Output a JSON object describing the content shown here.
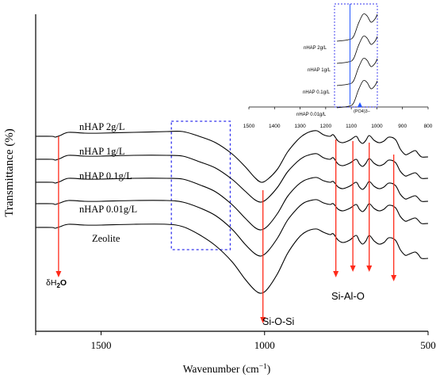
{
  "chart_data": {
    "type": "line",
    "xlabel": "Wavenumber (cm",
    "xlabel_sup": "−1",
    "xlabel_close": ")",
    "ylabel": "Transmittance (%)",
    "xlim": [
      1700,
      500
    ],
    "x_reversed": true,
    "x_ticks": [
      1500,
      1000,
      500
    ],
    "x_tick_labels": [
      "1500",
      "1000",
      "500"
    ],
    "series": [
      {
        "name": "nHAP 2g/L",
        "points": [
          [
            1700,
            172
          ],
          [
            1650,
            172
          ],
          [
            1640,
            173
          ],
          [
            1625,
            171
          ],
          [
            1600,
            167
          ],
          [
            1550,
            168
          ],
          [
            1500,
            168
          ],
          [
            1400,
            167
          ],
          [
            1300,
            166
          ],
          [
            1250,
            166
          ],
          [
            1200,
            172
          ],
          [
            1150,
            180
          ],
          [
            1100,
            194
          ],
          [
            1060,
            210
          ],
          [
            1030,
            224
          ],
          [
            1010,
            230
          ],
          [
            990,
            226
          ],
          [
            960,
            213
          ],
          [
            930,
            192
          ],
          [
            900,
            177
          ],
          [
            880,
            170
          ],
          [
            860,
            166
          ],
          [
            840,
            165
          ],
          [
            820,
            170
          ],
          [
            800,
            172
          ],
          [
            790,
            170
          ],
          [
            775,
            178
          ],
          [
            760,
            180
          ],
          [
            740,
            177
          ],
          [
            720,
            172
          ],
          [
            710,
            178
          ],
          [
            700,
            181
          ],
          [
            690,
            177
          ],
          [
            680,
            171
          ],
          [
            665,
            177
          ],
          [
            650,
            180
          ],
          [
            635,
            178
          ],
          [
            620,
            173
          ],
          [
            600,
            176
          ],
          [
            585,
            188
          ],
          [
            570,
            195
          ],
          [
            560,
            194
          ],
          [
            540,
            190
          ],
          [
            530,
            194
          ],
          [
            520,
            198
          ],
          [
            500,
            198
          ]
        ]
      },
      {
        "name": "nHAP 1g/L",
        "points": [
          [
            1700,
            201
          ],
          [
            1650,
            201
          ],
          [
            1640,
            202
          ],
          [
            1625,
            200
          ],
          [
            1600,
            196
          ],
          [
            1550,
            197
          ],
          [
            1500,
            197
          ],
          [
            1400,
            196
          ],
          [
            1300,
            196
          ],
          [
            1250,
            197
          ],
          [
            1200,
            204
          ],
          [
            1150,
            212
          ],
          [
            1100,
            226
          ],
          [
            1060,
            241
          ],
          [
            1030,
            252
          ],
          [
            1010,
            255
          ],
          [
            990,
            250
          ],
          [
            960,
            236
          ],
          [
            930,
            217
          ],
          [
            900,
            204
          ],
          [
            880,
            198
          ],
          [
            860,
            195
          ],
          [
            840,
            194
          ],
          [
            820,
            199
          ],
          [
            800,
            201
          ],
          [
            790,
            199
          ],
          [
            775,
            207
          ],
          [
            760,
            209
          ],
          [
            740,
            206
          ],
          [
            720,
            201
          ],
          [
            710,
            207
          ],
          [
            700,
            210
          ],
          [
            690,
            206
          ],
          [
            680,
            200
          ],
          [
            665,
            206
          ],
          [
            650,
            209
          ],
          [
            635,
            207
          ],
          [
            620,
            202
          ],
          [
            600,
            205
          ],
          [
            585,
            216
          ],
          [
            570,
            222
          ],
          [
            560,
            221
          ],
          [
            540,
            218
          ],
          [
            530,
            221
          ],
          [
            520,
            225
          ],
          [
            500,
            225
          ]
        ]
      },
      {
        "name": "nHAP 0.1g/L",
        "points": [
          [
            1700,
            230
          ],
          [
            1650,
            230
          ],
          [
            1640,
            231
          ],
          [
            1625,
            229
          ],
          [
            1600,
            225
          ],
          [
            1550,
            226
          ],
          [
            1500,
            226
          ],
          [
            1400,
            225
          ],
          [
            1300,
            225
          ],
          [
            1250,
            226
          ],
          [
            1200,
            233
          ],
          [
            1150,
            242
          ],
          [
            1100,
            258
          ],
          [
            1060,
            275
          ],
          [
            1030,
            287
          ],
          [
            1010,
            290
          ],
          [
            990,
            285
          ],
          [
            960,
            269
          ],
          [
            930,
            248
          ],
          [
            900,
            234
          ],
          [
            880,
            228
          ],
          [
            860,
            225
          ],
          [
            840,
            224
          ],
          [
            820,
            228
          ],
          [
            800,
            230
          ],
          [
            790,
            229
          ],
          [
            775,
            236
          ],
          [
            760,
            238
          ],
          [
            740,
            235
          ],
          [
            720,
            230
          ],
          [
            710,
            236
          ],
          [
            700,
            239
          ],
          [
            690,
            235
          ],
          [
            680,
            229
          ],
          [
            665,
            235
          ],
          [
            650,
            238
          ],
          [
            635,
            236
          ],
          [
            620,
            231
          ],
          [
            600,
            234
          ],
          [
            585,
            245
          ],
          [
            570,
            251
          ],
          [
            560,
            250
          ],
          [
            540,
            247
          ],
          [
            530,
            250
          ],
          [
            520,
            254
          ],
          [
            500,
            254
          ]
        ]
      },
      {
        "name": "nHAP 0.01g/L",
        "points": [
          [
            1700,
            257
          ],
          [
            1650,
            257
          ],
          [
            1640,
            258
          ],
          [
            1625,
            256
          ],
          [
            1600,
            253
          ],
          [
            1550,
            254
          ],
          [
            1500,
            254
          ],
          [
            1400,
            253
          ],
          [
            1300,
            253
          ],
          [
            1250,
            255
          ],
          [
            1200,
            262
          ],
          [
            1150,
            272
          ],
          [
            1100,
            289
          ],
          [
            1060,
            308
          ],
          [
            1030,
            320
          ],
          [
            1010,
            323
          ],
          [
            990,
            317
          ],
          [
            960,
            300
          ],
          [
            930,
            278
          ],
          [
            900,
            263
          ],
          [
            880,
            256
          ],
          [
            860,
            253
          ],
          [
            840,
            252
          ],
          [
            820,
            256
          ],
          [
            800,
            258
          ],
          [
            790,
            257
          ],
          [
            775,
            264
          ],
          [
            760,
            266
          ],
          [
            740,
            263
          ],
          [
            720,
            258
          ],
          [
            710,
            264
          ],
          [
            700,
            267
          ],
          [
            690,
            263
          ],
          [
            680,
            257
          ],
          [
            665,
            263
          ],
          [
            650,
            266
          ],
          [
            635,
            264
          ],
          [
            620,
            259
          ],
          [
            600,
            262
          ],
          [
            585,
            273
          ],
          [
            570,
            279
          ],
          [
            560,
            278
          ],
          [
            540,
            275
          ],
          [
            530,
            278
          ],
          [
            520,
            282
          ],
          [
            500,
            282
          ]
        ]
      },
      {
        "name": "Zeolite",
        "points": [
          [
            1700,
            287
          ],
          [
            1650,
            287
          ],
          [
            1640,
            288
          ],
          [
            1625,
            286
          ],
          [
            1600,
            283
          ],
          [
            1550,
            284
          ],
          [
            1500,
            284
          ],
          [
            1400,
            283
          ],
          [
            1300,
            283
          ],
          [
            1250,
            286
          ],
          [
            1200,
            296
          ],
          [
            1150,
            310
          ],
          [
            1100,
            330
          ],
          [
            1060,
            352
          ],
          [
            1030,
            366
          ],
          [
            1010,
            370
          ],
          [
            990,
            364
          ],
          [
            960,
            345
          ],
          [
            930,
            320
          ],
          [
            900,
            302
          ],
          [
            880,
            294
          ],
          [
            860,
            290
          ],
          [
            840,
            289
          ],
          [
            820,
            293
          ],
          [
            800,
            296
          ],
          [
            790,
            295
          ],
          [
            775,
            303
          ],
          [
            760,
            306
          ],
          [
            740,
            303
          ],
          [
            720,
            297
          ],
          [
            710,
            304
          ],
          [
            700,
            308
          ],
          [
            690,
            304
          ],
          [
            680,
            297
          ],
          [
            665,
            304
          ],
          [
            650,
            308
          ],
          [
            635,
            306
          ],
          [
            620,
            300
          ],
          [
            600,
            303
          ],
          [
            585,
            315
          ],
          [
            570,
            322
          ],
          [
            560,
            321
          ],
          [
            540,
            318
          ],
          [
            530,
            321
          ],
          [
            520,
            326
          ],
          [
            500,
            326
          ]
        ]
      }
    ],
    "curve_labels": [
      "nHAP 2g/L",
      "nHAP 1g/L",
      "nHAP 0.1g/L",
      "nHAP 0.01g/L",
      "Zeolite"
    ],
    "annotations": {
      "water": "δH",
      "water_sub": "2",
      "water_end": "O",
      "si_o_si": "Si-O-Si",
      "si_al_o": "Si-Al-O"
    },
    "marker_positions_cm1": {
      "water": 1630,
      "si_o_si": 1005,
      "si_al_o": [
        782,
        730,
        680,
        605
      ]
    },
    "highlight_box_cm1": [
      1285,
      1105
    ],
    "inset": {
      "x_ticks": [
        1500,
        1400,
        1300,
        1200,
        1100,
        1000,
        900,
        800
      ],
      "x_tick_labels": [
        "1500",
        "1400",
        "1300",
        "1200",
        "1100",
        "1000",
        "900",
        "800"
      ],
      "curve_labels": [
        "nHAP 2g/L",
        "nHAP 1g/L",
        "nHAP 0.1g/L",
        "nHAP 0.01g/L"
      ],
      "marker_label": "(PO4)3−",
      "marker_cm1": 1105
    },
    "colors": {
      "line": "#000000",
      "arrow": "#ff2a1a",
      "box": "#3333ee",
      "inset_marker": "#2255ff"
    }
  }
}
